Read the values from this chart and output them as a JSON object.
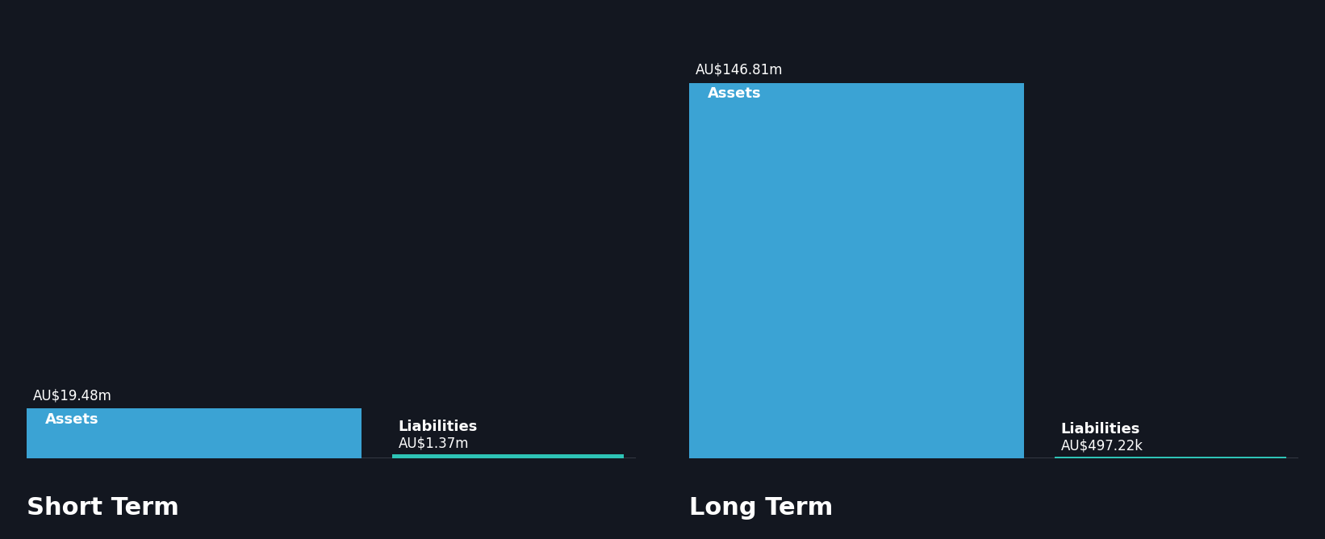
{
  "background_color": "#131720",
  "bar_color": "#3ba3d4",
  "liabilities_color": "#2ec4b6",
  "text_color": "#ffffff",
  "sections": [
    {
      "title": "Short Term",
      "assets_value": 19.48,
      "assets_label": "AU$19.48m",
      "assets_name": "Assets",
      "liabilities_value": 1.37,
      "liabilities_label": "AU$1.37m",
      "liabilities_name": "Liabilities"
    },
    {
      "title": "Long Term",
      "assets_value": 146.81,
      "assets_label": "AU$146.81m",
      "assets_name": "Assets",
      "liabilities_value": 0.49722,
      "liabilities_label": "AU$497.22k",
      "liabilities_name": "Liabilities"
    }
  ],
  "max_value": 146.81,
  "title_fontsize": 22,
  "bar_label_fontsize": 13,
  "value_label_fontsize": 12
}
